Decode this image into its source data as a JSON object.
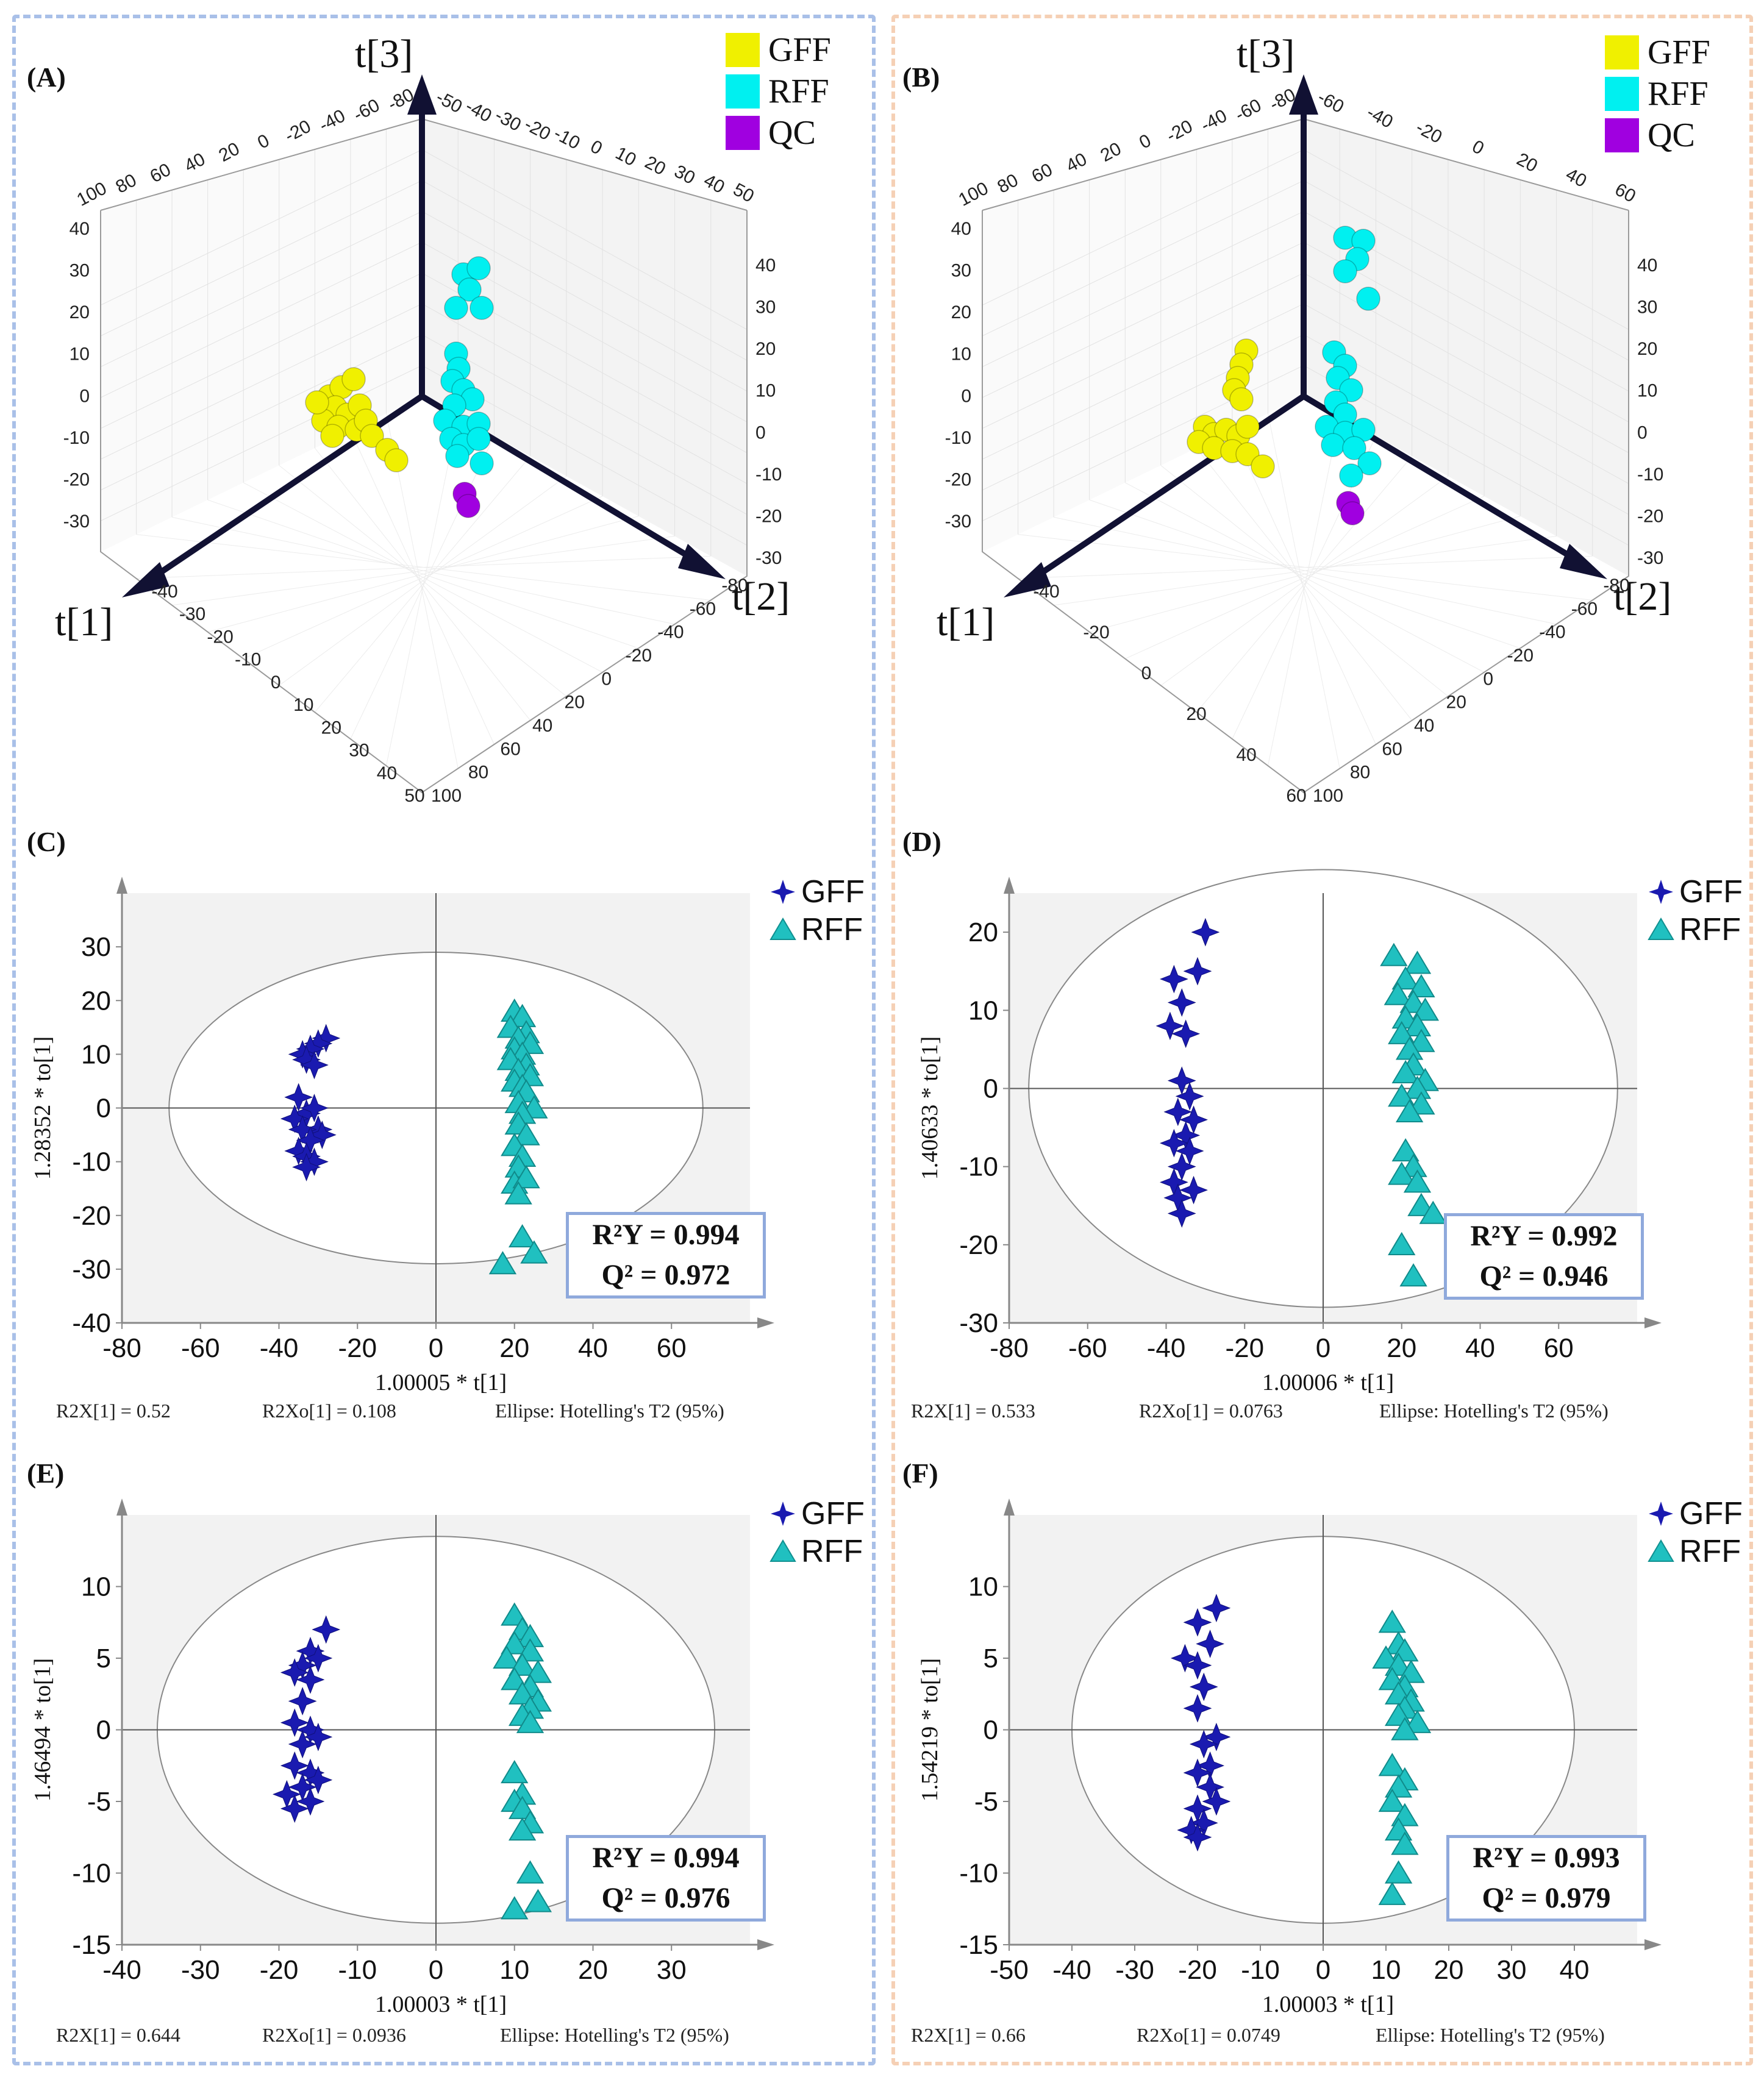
{
  "panels_3d": [
    {
      "id": "A",
      "label": "(A)",
      "axis_labels": {
        "t1": "t[1]",
        "t2": "t[2]",
        "t3": "t[3]"
      },
      "legend": [
        {
          "label": "GFF",
          "color": "#f0f000"
        },
        {
          "label": "RFF",
          "color": "#00f0f0"
        },
        {
          "label": "QC",
          "color": "#a000e0"
        }
      ],
      "ticks": {
        "back_top": [
          "100",
          "80",
          "60",
          "40",
          "20",
          "0",
          "-20",
          "-40",
          "-60",
          "-80"
        ],
        "top_right": [
          "-50",
          "-40",
          "-30",
          "-20",
          "-10",
          "0",
          "10",
          "20",
          "30",
          "40",
          "50"
        ],
        "left_vertical": [
          "40",
          "30",
          "20",
          "10",
          "0",
          "-10",
          "-20",
          "-30"
        ],
        "right_vertical": [
          "40",
          "30",
          "20",
          "10",
          "0",
          "-10",
          "-20",
          "-30"
        ],
        "bottom_left": [
          "-40",
          "-30",
          "-20",
          "-10",
          "0",
          "10",
          "20",
          "30",
          "40",
          "50"
        ],
        "bottom_right": [
          "-80",
          "-60",
          "-40",
          "-20",
          "0",
          "20",
          "40",
          "60",
          "80",
          "100"
        ]
      }
    },
    {
      "id": "B",
      "label": "(B)",
      "axis_labels": {
        "t1": "t[1]",
        "t2": "t[2]",
        "t3": "t[3]"
      },
      "legend": [
        {
          "label": "GFF",
          "color": "#f0f000"
        },
        {
          "label": "RFF",
          "color": "#00f0f0"
        },
        {
          "label": "QC",
          "color": "#a000e0"
        }
      ],
      "ticks": {
        "back_top": [
          "100",
          "80",
          "60",
          "40",
          "20",
          "0",
          "-20",
          "-40",
          "-60",
          "-80"
        ],
        "top_right": [
          "-60",
          "-40",
          "-20",
          "0",
          "20",
          "40",
          "60"
        ],
        "left_vertical": [
          "40",
          "30",
          "20",
          "10",
          "0",
          "-10",
          "-20",
          "-30"
        ],
        "right_vertical": [
          "40",
          "30",
          "20",
          "10",
          "0",
          "-10",
          "-20",
          "-30"
        ],
        "bottom_left": [
          "-40",
          "-20",
          "0",
          "20",
          "40",
          "60"
        ],
        "bottom_right": [
          "-80",
          "-60",
          "-40",
          "-20",
          "0",
          "20",
          "40",
          "60",
          "80",
          "100"
        ]
      }
    }
  ],
  "chart_data": [
    {
      "id": "C",
      "label": "(C)",
      "type": "scatter",
      "xlabel": "1.00005 * t[1]",
      "ylabel": "1.28352 * to[1]",
      "xlim": [
        -80,
        80
      ],
      "ylim": [
        -40,
        40
      ],
      "xticks": [
        "-80",
        "-60",
        "-40",
        "-20",
        "0",
        "20",
        "40",
        "60"
      ],
      "yticks": [
        "30",
        "20",
        "10",
        "0",
        "-10",
        "-20",
        "-30",
        "-40"
      ],
      "ellipse": {
        "cx": 0,
        "cy": 0,
        "rx": 68,
        "ry": 29
      },
      "stats": {
        "r2y": "R²Y = 0.994",
        "q2": "Q² = 0.972"
      },
      "footer": {
        "r2x": "R2X[1] = 0.52",
        "r2xo": "R2Xo[1] = 0.108",
        "ellipse": "Ellipse: Hotelling's T2 (95%)"
      },
      "series": [
        {
          "name": "GFF",
          "marker": "star",
          "color": "#1a1ab0",
          "points": [
            [
              -28,
              13
            ],
            [
              -30,
              12
            ],
            [
              -32,
              11
            ],
            [
              -34,
              10
            ],
            [
              -33,
              9
            ],
            [
              -31,
              8
            ],
            [
              -35,
              2
            ],
            [
              -33,
              -1
            ],
            [
              -31,
              0
            ],
            [
              -36,
              -2
            ],
            [
              -30,
              -4
            ],
            [
              -34,
              -4
            ],
            [
              -29,
              -5
            ],
            [
              -32,
              -6
            ],
            [
              -35,
              -8
            ],
            [
              -33,
              -9
            ],
            [
              -31,
              -10
            ],
            [
              -33,
              -11
            ]
          ]
        },
        {
          "name": "RFF",
          "marker": "triangle",
          "color": "#20c0c0",
          "points": [
            [
              20,
              18
            ],
            [
              22,
              17
            ],
            [
              19,
              15
            ],
            [
              23,
              14
            ],
            [
              21,
              13
            ],
            [
              24,
              12
            ],
            [
              20,
              11
            ],
            [
              22,
              10
            ],
            [
              19,
              9
            ],
            [
              23,
              8
            ],
            [
              21,
              7
            ],
            [
              24,
              6
            ],
            [
              20,
              5
            ],
            [
              22,
              4
            ],
            [
              23,
              3
            ],
            [
              21,
              1
            ],
            [
              25,
              0
            ],
            [
              22,
              -1
            ],
            [
              21,
              -3
            ],
            [
              23,
              -5
            ],
            [
              20,
              -7
            ],
            [
              22,
              -9
            ],
            [
              21,
              -11
            ],
            [
              20,
              -14
            ],
            [
              23,
              -13
            ],
            [
              21,
              -16
            ],
            [
              22,
              -24
            ],
            [
              25,
              -27
            ],
            [
              17,
              -29
            ]
          ]
        }
      ]
    },
    {
      "id": "D",
      "label": "(D)",
      "type": "scatter",
      "xlabel": "1.00006 * t[1]",
      "ylabel": "1.40633 * to[1]",
      "xlim": [
        -80,
        80
      ],
      "ylim": [
        -30,
        25
      ],
      "xticks": [
        "-80",
        "-60",
        "-40",
        "-20",
        "0",
        "20",
        "40",
        "60"
      ],
      "yticks": [
        "20",
        "10",
        "0",
        "-10",
        "-20",
        "-30"
      ],
      "ellipse": {
        "cx": 0,
        "cy": 0,
        "rx": 75,
        "ry": 28
      },
      "stats": {
        "r2y": "R²Y = 0.992",
        "q2": "Q² = 0.946"
      },
      "footer": {
        "r2x": "R2X[1] = 0.533",
        "r2xo": "R2Xo[1] = 0.0763",
        "ellipse": "Ellipse: Hotelling's T2 (95%)"
      },
      "series": [
        {
          "name": "GFF",
          "marker": "star",
          "color": "#1a1ab0",
          "points": [
            [
              -30,
              20
            ],
            [
              -32,
              15
            ],
            [
              -38,
              14
            ],
            [
              -36,
              11
            ],
            [
              -39,
              8
            ],
            [
              -35,
              7
            ],
            [
              -36,
              1
            ],
            [
              -34,
              -1
            ],
            [
              -37,
              -3
            ],
            [
              -33,
              -4
            ],
            [
              -35,
              -6
            ],
            [
              -38,
              -7
            ],
            [
              -34,
              -8
            ],
            [
              -36,
              -10
            ],
            [
              -38,
              -12
            ],
            [
              -33,
              -13
            ],
            [
              -37,
              -14
            ],
            [
              -36,
              -16
            ]
          ]
        },
        {
          "name": "RFF",
          "marker": "triangle",
          "color": "#20c0c0",
          "points": [
            [
              18,
              17
            ],
            [
              24,
              16
            ],
            [
              21,
              14
            ],
            [
              25,
              13
            ],
            [
              19,
              12
            ],
            [
              23,
              11
            ],
            [
              26,
              10
            ],
            [
              21,
              9
            ],
            [
              24,
              8
            ],
            [
              20,
              7
            ],
            [
              25,
              6
            ],
            [
              22,
              5
            ],
            [
              23,
              3
            ],
            [
              21,
              2
            ],
            [
              26,
              1
            ],
            [
              24,
              0
            ],
            [
              20,
              -1
            ],
            [
              25,
              -2
            ],
            [
              22,
              -3
            ],
            [
              21,
              -8
            ],
            [
              23,
              -10
            ],
            [
              20,
              -11
            ],
            [
              24,
              -12
            ],
            [
              25,
              -15
            ],
            [
              28,
              -16
            ],
            [
              20,
              -20
            ],
            [
              23,
              -24
            ]
          ]
        }
      ]
    },
    {
      "id": "E",
      "label": "(E)",
      "type": "scatter",
      "xlabel": "1.00003 * t[1]",
      "ylabel": "1.46494 * to[1]",
      "xlim": [
        -40,
        40
      ],
      "ylim": [
        -15,
        15
      ],
      "xticks": [
        "-40",
        "-30",
        "-20",
        "-10",
        "0",
        "10",
        "20",
        "30"
      ],
      "yticks": [
        "10",
        "5",
        "0",
        "-5",
        "-10",
        "-15"
      ],
      "ellipse": {
        "cx": 0,
        "cy": 0,
        "rx": 35.5,
        "ry": 13.5
      },
      "stats": {
        "r2y": "R²Y = 0.994",
        "q2": "Q² = 0.976"
      },
      "footer": {
        "r2x": "R2X[1] = 0.644",
        "r2xo": "R2Xo[1] = 0.0936",
        "ellipse": "Ellipse: Hotelling's T2 (95%)"
      },
      "series": [
        {
          "name": "GFF",
          "marker": "star",
          "color": "#1a1ab0",
          "points": [
            [
              -14,
              7
            ],
            [
              -16,
              5.5
            ],
            [
              -15,
              5
            ],
            [
              -17,
              4.5
            ],
            [
              -18,
              4
            ],
            [
              -16,
              3.5
            ],
            [
              -17,
              2
            ],
            [
              -18,
              0.5
            ],
            [
              -16,
              0
            ],
            [
              -15,
              -0.5
            ],
            [
              -17,
              -1
            ],
            [
              -18,
              -2.5
            ],
            [
              -16,
              -3
            ],
            [
              -15,
              -3.5
            ],
            [
              -17,
              -4
            ],
            [
              -19,
              -4.5
            ],
            [
              -16,
              -5
            ],
            [
              -18,
              -5.5
            ]
          ]
        },
        {
          "name": "RFF",
          "marker": "triangle",
          "color": "#20c0c0",
          "points": [
            [
              10,
              8
            ],
            [
              11,
              7
            ],
            [
              12,
              6.5
            ],
            [
              10,
              6
            ],
            [
              12,
              5.5
            ],
            [
              9,
              5
            ],
            [
              11,
              4.5
            ],
            [
              13,
              4
            ],
            [
              10,
              3.5
            ],
            [
              12,
              3
            ],
            [
              11,
              2.5
            ],
            [
              13,
              2
            ],
            [
              12,
              1.5
            ],
            [
              11,
              1
            ],
            [
              12,
              0.5
            ],
            [
              10,
              -3
            ],
            [
              11,
              -4.5
            ],
            [
              10,
              -5
            ],
            [
              11,
              -5.5
            ],
            [
              12,
              -6.5
            ],
            [
              11,
              -7
            ],
            [
              12,
              -10
            ],
            [
              13,
              -12
            ],
            [
              10,
              -12.5
            ]
          ]
        }
      ]
    },
    {
      "id": "F",
      "label": "(F)",
      "type": "scatter",
      "xlabel": "1.00003 * t[1]",
      "ylabel": "1.54219 * to[1]",
      "xlim": [
        -50,
        50
      ],
      "ylim": [
        -15,
        15
      ],
      "xticks": [
        "-50",
        "-40",
        "-30",
        "-20",
        "-10",
        "0",
        "10",
        "20",
        "30",
        "40"
      ],
      "yticks": [
        "10",
        "5",
        "0",
        "-5",
        "-10",
        "-15"
      ],
      "ellipse": {
        "cx": 0,
        "cy": 0,
        "rx": 40,
        "ry": 13.5
      },
      "stats": {
        "r2y": "R²Y = 0.993",
        "q2": "Q² = 0.979"
      },
      "footer": {
        "r2x": "R2X[1] = 0.66",
        "r2xo": "R2Xo[1] = 0.0749",
        "ellipse": "Ellipse: Hotelling's T2 (95%)"
      },
      "series": [
        {
          "name": "GFF",
          "marker": "star",
          "color": "#1a1ab0",
          "points": [
            [
              -17,
              8.5
            ],
            [
              -20,
              7.5
            ],
            [
              -18,
              6
            ],
            [
              -22,
              5
            ],
            [
              -20,
              4.5
            ],
            [
              -19,
              3
            ],
            [
              -20,
              1.5
            ],
            [
              -17,
              -0.5
            ],
            [
              -19,
              -1
            ],
            [
              -18,
              -2.5
            ],
            [
              -20,
              -3
            ],
            [
              -18,
              -4
            ],
            [
              -17,
              -5
            ],
            [
              -20,
              -5.5
            ],
            [
              -19,
              -6.5
            ],
            [
              -21,
              -7
            ],
            [
              -20,
              -7.5
            ]
          ]
        },
        {
          "name": "RFF",
          "marker": "triangle",
          "color": "#20c0c0",
          "points": [
            [
              11,
              7.5
            ],
            [
              12,
              6
            ],
            [
              13,
              5.5
            ],
            [
              10,
              5
            ],
            [
              12,
              4.5
            ],
            [
              14,
              4
            ],
            [
              11,
              3.5
            ],
            [
              13,
              3
            ],
            [
              12,
              2.5
            ],
            [
              14,
              2
            ],
            [
              13,
              1.5
            ],
            [
              12,
              1
            ],
            [
              15,
              0.5
            ],
            [
              13,
              0
            ],
            [
              11,
              -2.5
            ],
            [
              13,
              -3.5
            ],
            [
              12,
              -4
            ],
            [
              11,
              -5
            ],
            [
              13,
              -6
            ],
            [
              12,
              -7
            ],
            [
              13,
              -8
            ],
            [
              12,
              -10
            ],
            [
              11,
              -11.5
            ]
          ]
        }
      ]
    }
  ]
}
